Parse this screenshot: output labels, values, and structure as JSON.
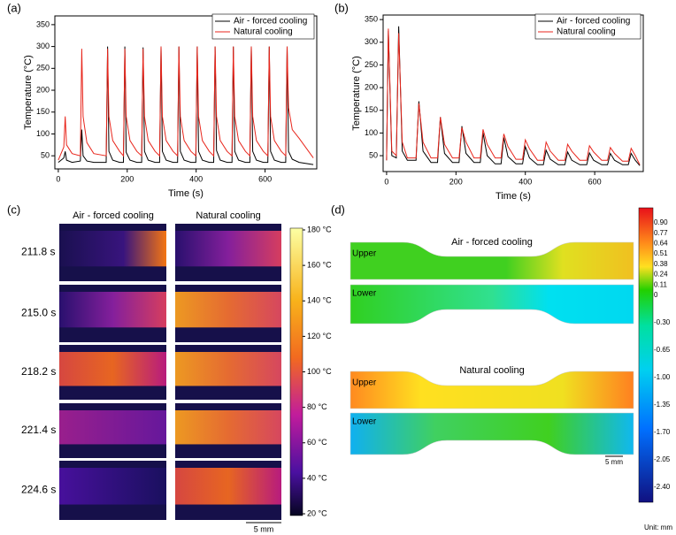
{
  "chart_data": [
    {
      "type": "line",
      "label": "(a)",
      "x_label": "Time (s)",
      "y_label": "Temperature (°C)",
      "legend": "upper right",
      "xlim": [
        -10,
        750
      ],
      "ylim": [
        20,
        370
      ],
      "xticks": [
        0,
        200,
        400,
        600
      ],
      "yticks": [
        50,
        100,
        150,
        200,
        250,
        300,
        350
      ],
      "x": [
        0,
        16,
        20,
        24,
        40,
        64,
        68,
        72,
        83,
        103,
        139,
        143,
        147,
        158,
        178,
        189,
        193,
        197,
        208,
        228,
        242,
        246,
        250,
        261,
        281,
        294,
        298,
        302,
        313,
        333,
        346,
        350,
        354,
        365,
        385,
        399,
        403,
        407,
        418,
        438,
        451,
        455,
        459,
        470,
        490,
        504,
        508,
        512,
        523,
        543,
        556,
        560,
        564,
        575,
        595,
        608,
        612,
        616,
        627,
        647,
        660,
        664,
        668,
        679,
        699,
        740
      ],
      "series": [
        {
          "name": "Air - forced cooling",
          "color": "#000000",
          "values": [
            35,
            45,
            60,
            40,
            35,
            38,
            110,
            50,
            38,
            35,
            35,
            300,
            60,
            40,
            35,
            35,
            300,
            58,
            40,
            35,
            35,
            298,
            60,
            40,
            35,
            35,
            300,
            60,
            40,
            35,
            35,
            300,
            60,
            40,
            35,
            35,
            300,
            60,
            40,
            35,
            35,
            300,
            62,
            40,
            35,
            35,
            300,
            60,
            40,
            35,
            35,
            300,
            60,
            40,
            35,
            35,
            300,
            60,
            40,
            35,
            35,
            300,
            60,
            42,
            35,
            30
          ]
        },
        {
          "name": "Natural cooling",
          "color": "#e8261c",
          "values": [
            40,
            70,
            140,
            75,
            55,
            50,
            295,
            140,
            80,
            55,
            50,
            295,
            140,
            85,
            60,
            50,
            295,
            140,
            85,
            60,
            50,
            295,
            140,
            85,
            60,
            50,
            300,
            140,
            85,
            60,
            50,
            300,
            140,
            85,
            60,
            50,
            300,
            140,
            85,
            60,
            50,
            300,
            140,
            85,
            60,
            50,
            300,
            140,
            85,
            60,
            50,
            300,
            140,
            85,
            60,
            50,
            300,
            140,
            85,
            60,
            50,
            300,
            160,
            110,
            90,
            45
          ]
        }
      ]
    },
    {
      "type": "line",
      "label": "(b)",
      "x_label": "Time (s)",
      "y_label": "Temperature (°C)",
      "legend": "upper right",
      "xlim": [
        -10,
        740
      ],
      "ylim": [
        15,
        360
      ],
      "xticks": [
        0,
        200,
        400,
        600
      ],
      "yticks": [
        50,
        100,
        150,
        200,
        250,
        300,
        350
      ],
      "x": [
        0,
        5,
        15,
        28,
        35,
        45,
        60,
        85,
        93,
        105,
        128,
        147,
        155,
        167,
        190,
        209,
        217,
        229,
        252,
        270,
        278,
        290,
        313,
        330,
        338,
        350,
        373,
        392,
        400,
        412,
        435,
        452,
        460,
        472,
        495,
        514,
        522,
        534,
        557,
        577,
        585,
        597,
        620,
        637,
        645,
        657,
        680,
        697,
        705,
        717,
        730
      ],
      "series": [
        {
          "name": "Air - forced cooling",
          "color": "#000000",
          "values": [
            40,
            325,
            50,
            45,
            335,
            60,
            40,
            40,
            170,
            60,
            35,
            35,
            135,
            55,
            35,
            35,
            115,
            55,
            35,
            35,
            100,
            50,
            32,
            32,
            90,
            48,
            32,
            32,
            70,
            45,
            30,
            30,
            62,
            42,
            30,
            30,
            58,
            40,
            30,
            30,
            56,
            40,
            30,
            30,
            55,
            40,
            30,
            30,
            55,
            40,
            28
          ]
        },
        {
          "name": "Natural cooling",
          "color": "#e8261c",
          "values": [
            40,
            330,
            60,
            50,
            320,
            80,
            45,
            45,
            165,
            80,
            45,
            45,
            135,
            75,
            45,
            45,
            112,
            80,
            45,
            45,
            108,
            75,
            45,
            45,
            98,
            70,
            42,
            42,
            85,
            65,
            40,
            40,
            80,
            60,
            40,
            40,
            75,
            60,
            40,
            40,
            72,
            58,
            40,
            40,
            68,
            55,
            38,
            38,
            66,
            50,
            30
          ]
        }
      ]
    }
  ],
  "thermal": {
    "label": "(c)",
    "columns": [
      "Air - forced cooling",
      "Natural cooling"
    ],
    "times": [
      "211.8 s",
      "215.0 s",
      "218.2 s",
      "221.4 s",
      "224.6 s"
    ],
    "colorbar": [
      "180 °C",
      "160 °C",
      "140 °C",
      "120 °C",
      "100 °C",
      "80 °C",
      "60 °C",
      "40 °C",
      "20 °C"
    ],
    "scale": "5 mm"
  },
  "strain": {
    "label": "(d)",
    "groups": [
      {
        "title": "Air - forced cooling",
        "parts": [
          "Upper",
          "Lower"
        ]
      },
      {
        "title": "Natural cooling",
        "parts": [
          "Upper",
          "Lower"
        ]
      }
    ],
    "colorbar": [
      "0.90",
      "0.77",
      "0.64",
      "0.51",
      "0.38",
      "0.24",
      "0.11",
      "0",
      "-0.30",
      "-0.65",
      "-1.00",
      "-1.35",
      "-1.70",
      "-2.05",
      "-2.40"
    ],
    "scale": "5 mm",
    "unit": "Unit: mm"
  }
}
